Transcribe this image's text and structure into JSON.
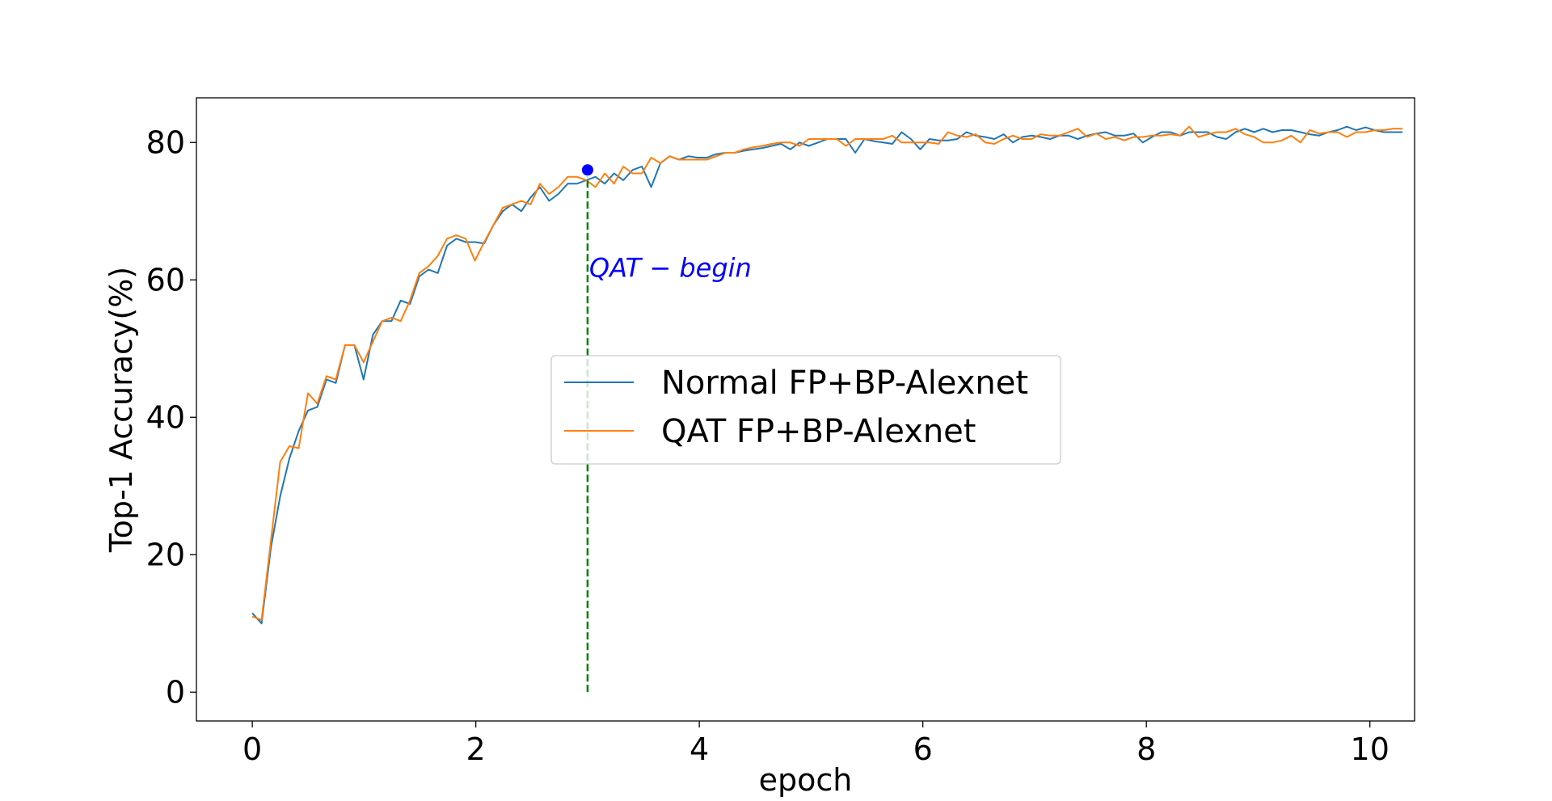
{
  "chart_data": {
    "type": "line",
    "xlabel": "epoch",
    "ylabel": "Top-1 Accuracy(%)",
    "xlim": [
      -0.5,
      10.4
    ],
    "ylim": [
      -4.2,
      86.5
    ],
    "x_ticks": [
      "0",
      "2",
      "4",
      "6",
      "8",
      "10"
    ],
    "y_ticks": [
      "0",
      "20",
      "40",
      "60",
      "80"
    ],
    "grid": false,
    "legend_position": "center",
    "x_step": 0.083,
    "series": [
      {
        "name": "Normal FP+BP-Alexnet",
        "color": "#1f77b4",
        "values": [
          11.5,
          10.0,
          21.0,
          28.5,
          34.0,
          38.0,
          41.0,
          41.5,
          45.5,
          45.0,
          50.5,
          50.5,
          45.5,
          52.0,
          54.0,
          54.0,
          57.0,
          56.5,
          60.5,
          61.5,
          61.0,
          65.0,
          66.0,
          65.5,
          65.5,
          65.3,
          68.0,
          70.0,
          71.0,
          70.0,
          72.0,
          73.5,
          71.5,
          72.5,
          74.0,
          74.0,
          74.5,
          75.0,
          74.0,
          75.5,
          74.5,
          76.0,
          76.5,
          73.5,
          77.0,
          78.0,
          77.5,
          78.0,
          77.8,
          77.8,
          78.3,
          78.5,
          78.5,
          78.8,
          79.0,
          79.2,
          79.5,
          79.8,
          79.0,
          80.0,
          79.5,
          80.0,
          80.5,
          80.5,
          80.5,
          78.5,
          80.5,
          80.2,
          80.0,
          79.8,
          81.5,
          80.5,
          79.0,
          80.5,
          80.3,
          80.3,
          80.5,
          81.5,
          81.0,
          80.8,
          80.5,
          81.2,
          80.0,
          80.8,
          81.0,
          80.8,
          80.5,
          81.0,
          81.0,
          80.5,
          81.0,
          81.3,
          81.5,
          81.0,
          81.0,
          81.3,
          80.0,
          80.8,
          81.5,
          81.5,
          81.0,
          81.5,
          81.5,
          81.5,
          80.8,
          80.5,
          81.5,
          82.0,
          81.5,
          82.0,
          81.5,
          81.8,
          81.8,
          81.5,
          81.2,
          81.0,
          81.5,
          81.8,
          82.3,
          81.8,
          82.2,
          81.8,
          81.5,
          81.5,
          81.5
        ]
      },
      {
        "name": "QAT FP+BP-Alexnet",
        "color": "#ff7f0e",
        "values": [
          11.0,
          10.5,
          22.0,
          33.5,
          35.8,
          35.5,
          43.5,
          42.0,
          46.0,
          45.5,
          50.5,
          50.5,
          48.0,
          51.0,
          54.0,
          54.5,
          54.0,
          57.0,
          61.0,
          62.0,
          63.5,
          66.0,
          66.5,
          66.0,
          62.8,
          65.5,
          68.0,
          70.5,
          71.0,
          71.5,
          71.0,
          74.0,
          72.5,
          73.5,
          75.0,
          75.0,
          74.5,
          73.5,
          75.5,
          74.0,
          76.5,
          75.5,
          75.5,
          77.8,
          77.0,
          78.0,
          77.5,
          77.5,
          77.5,
          77.5,
          78.0,
          78.5,
          78.5,
          79.0,
          79.3,
          79.5,
          79.8,
          80.0,
          80.0,
          79.5,
          80.5,
          80.5,
          80.5,
          80.5,
          79.5,
          80.5,
          80.5,
          80.5,
          80.5,
          81.0,
          80.0,
          80.0,
          80.0,
          80.0,
          79.8,
          81.5,
          81.0,
          80.8,
          81.2,
          80.0,
          79.8,
          80.5,
          81.0,
          80.5,
          80.5,
          81.2,
          81.0,
          81.0,
          81.5,
          82.0,
          80.8,
          81.3,
          80.5,
          80.8,
          80.3,
          80.8,
          80.8,
          81.0,
          81.0,
          81.2,
          81.0,
          82.3,
          80.8,
          81.2,
          81.5,
          81.5,
          82.0,
          81.2,
          80.8,
          80.0,
          80.0,
          80.3,
          81.0,
          80.0,
          81.8,
          81.3,
          81.5,
          81.5,
          80.8,
          81.5,
          81.5,
          81.8,
          81.8,
          82.0,
          82.0
        ]
      }
    ],
    "annotation": {
      "text": "QAT − begin",
      "x": 3.0,
      "y": 60,
      "color": "#0000ff",
      "marker": {
        "x": 3.0,
        "y": 76.0,
        "color": "#0000ff"
      },
      "vline": {
        "x": 3.0,
        "y_from": 0,
        "y_to": 75,
        "color": "#008000",
        "style": "dashed"
      }
    }
  }
}
